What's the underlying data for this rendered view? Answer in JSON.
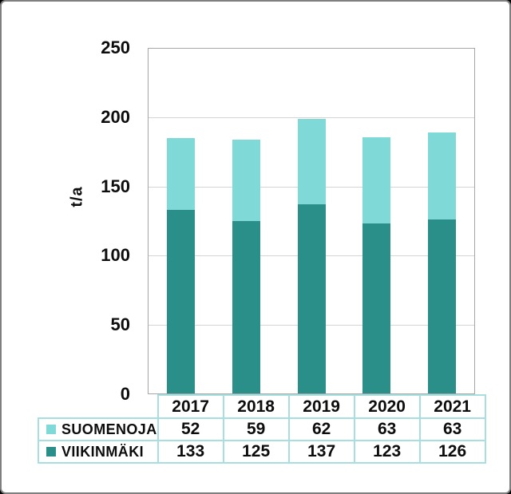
{
  "chart_data": {
    "type": "bar",
    "stacked": true,
    "title": "",
    "xlabel": "",
    "ylabel": "t/a",
    "ylim": [
      0,
      250
    ],
    "yticks": [
      250,
      200,
      150,
      100,
      50,
      0
    ],
    "grid": true,
    "categories": [
      "2017",
      "2018",
      "2019",
      "2020",
      "2021"
    ],
    "series": [
      {
        "name": "SUOMENOJA",
        "color": "#7FD9D6",
        "values": [
          52,
          59,
          62,
          63,
          63
        ]
      },
      {
        "name": "VIIKINMÄKI",
        "color": "#2A8E89",
        "values": [
          133,
          125,
          137,
          123,
          126
        ]
      }
    ],
    "stack_order_bottom_to_top": [
      "VIIKINMÄKI",
      "SUOMENOJA"
    ],
    "totals": [
      185,
      184,
      199,
      186,
      189
    ],
    "legend_position": "table-left-column"
  },
  "colors": {
    "suomenoja": "#7FD9D6",
    "viikinmaki": "#2A8E89",
    "table_border": "#A8DEDD",
    "gridline": "#D4D4D4",
    "plot_border": "#A6A6A6",
    "frame_border": "#7F7F7F",
    "text": "#0D0D0D",
    "background": "#FFFFFF"
  }
}
